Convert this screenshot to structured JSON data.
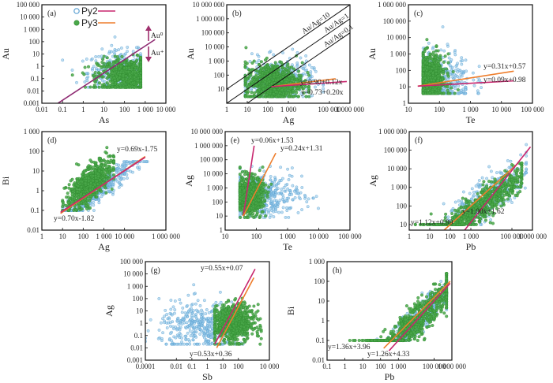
{
  "colors": {
    "py2": "#8cc4e8",
    "py2_edge": "#5a9fd1",
    "py3": "#4aa84a",
    "py3_edge": "#2f8a2f",
    "py2_fit": "#c8266e",
    "py3_fit": "#ee7d2b",
    "ratio_line": "#111111",
    "arrow": "#a0306e"
  },
  "legend": {
    "entries": [
      {
        "name": "Py2",
        "marker": "open-circle",
        "line": "py2_fit"
      },
      {
        "name": "Py3",
        "marker": "filled-circle",
        "line": "py3_fit"
      }
    ]
  },
  "chart_data": [
    {
      "id": "a",
      "panel_label": "(a)",
      "type": "scatter",
      "xlabel": "As",
      "ylabel": "Au",
      "xscale": "log",
      "yscale": "log",
      "xlim": [
        0.01,
        10000
      ],
      "ylim": [
        0.001,
        100000
      ],
      "xticks": [
        "0.01",
        "0.1",
        "1",
        "10",
        "100",
        "1 000",
        "10 000"
      ],
      "yticks": [
        "0.001",
        "0.01",
        "0.1",
        "1",
        "10",
        "100",
        "1 000",
        "10 000",
        "100 000"
      ],
      "series": [
        {
          "name": "Py2",
          "cloud": {
            "x_range": [
              0.1,
              600
            ],
            "y_range": [
              0.02,
              1500
            ],
            "center": [
              80,
              0.3
            ]
          }
        },
        {
          "name": "Py3",
          "cloud": {
            "x_range": [
              0.3,
              600
            ],
            "y_range": [
              0.02,
              200
            ],
            "center": [
              150,
              0.15
            ]
          }
        }
      ],
      "lines": [
        {
          "series": "Py2",
          "kind": "boundary",
          "x": [
            0.06,
            3000
          ],
          "y": [
            0.001,
            150
          ]
        }
      ],
      "annotations": [
        {
          "text": "Au⁰",
          "position": "upper-right",
          "arrow": "up"
        },
        {
          "text": "Au⁺",
          "position": "right",
          "arrow": "down"
        }
      ],
      "legend_position": "top-center"
    },
    {
      "id": "b",
      "panel_label": "(b)",
      "type": "scatter",
      "xlabel": "Ag",
      "ylabel": "Au",
      "xscale": "log",
      "yscale": "log",
      "xlim": [
        1,
        1000000
      ],
      "ylim": [
        1,
        10000000
      ],
      "xticks": [
        "1",
        "10",
        "100",
        "1 000",
        "100 000",
        "1 000 000"
      ],
      "yticks": [
        "10",
        "100",
        "1 000",
        "10 000",
        "100 000",
        "1 000 000",
        "10 000 000"
      ],
      "series": [
        {
          "name": "Py2",
          "cloud": {
            "x_range": [
              8,
              50000
            ],
            "y_range": [
              3,
              50000
            ],
            "center": [
              300,
              40
            ]
          }
        },
        {
          "name": "Py3",
          "cloud": {
            "x_range": [
              8,
              10000
            ],
            "y_range": [
              3,
              20000
            ],
            "center": [
              200,
              30
            ]
          }
        }
      ],
      "lines": [
        {
          "kind": "ratio",
          "label": "Au/Ag=10",
          "ratio": 10
        },
        {
          "kind": "ratio",
          "label": "Au/Ag=1",
          "ratio": 1
        },
        {
          "kind": "ratio",
          "label": "Au/Ag=0.1",
          "ratio": 0.1
        },
        {
          "series": "Py3",
          "label": "y=0.90+0.12x",
          "x": [
            150,
            200000
          ],
          "y": [
            15,
            55
          ]
        },
        {
          "series": "Py2",
          "label": "y=0.73+0.20x",
          "x": [
            150,
            700000
          ],
          "y": [
            15,
            35
          ]
        }
      ]
    },
    {
      "id": "c",
      "panel_label": "(c)",
      "type": "scatter",
      "xlabel": "Te",
      "ylabel": "Au",
      "xscale": "log",
      "yscale": "log",
      "xlim": [
        10,
        100000
      ],
      "ylim": [
        1,
        1000000
      ],
      "xticks": [
        "10",
        "100",
        "1 000",
        "10 000",
        "100 000"
      ],
      "yticks": [
        "1",
        "10",
        "100",
        "1 000",
        "10 000",
        "100 000",
        "1 000 000"
      ],
      "series": [
        {
          "name": "Py2",
          "cloud": {
            "x_range": [
              30,
              10000
            ],
            "y_range": [
              4,
              300000
            ],
            "center": [
              80,
              30
            ]
          }
        },
        {
          "name": "Py3",
          "cloud": {
            "x_range": [
              30,
              400
            ],
            "y_range": [
              4,
              40000
            ],
            "center": [
              50,
              30
            ]
          }
        }
      ],
      "lines": [
        {
          "series": "Py3",
          "label": "y=0.31x+0.57",
          "x": [
            20,
            25000
          ],
          "y": [
            11,
            90
          ]
        },
        {
          "series": "Py2",
          "label": "y=0.09x+0.98",
          "x": [
            20,
            25000
          ],
          "y": [
            11,
            23
          ]
        }
      ]
    },
    {
      "id": "d",
      "panel_label": "(d)",
      "type": "scatter",
      "xlabel": "Ag",
      "ylabel": "Bi",
      "xscale": "log",
      "yscale": "log",
      "xlim": [
        1,
        1000000
      ],
      "ylim": [
        0.01,
        1000
      ],
      "xticks": [
        "1",
        "10",
        "100",
        "1 000",
        "10 000",
        "1 000 000"
      ],
      "yticks": [
        "0.01",
        "0.1",
        "1",
        "10",
        "100",
        "1 000"
      ],
      "series": [
        {
          "name": "Py2",
          "cloud": {
            "x_range": [
              10,
              300000
            ],
            "y_range": [
              0.1,
              30
            ],
            "center": [
              500,
              1
            ]
          }
        },
        {
          "name": "Py3",
          "cloud": {
            "x_range": [
              10,
              3000
            ],
            "y_range": [
              0.1,
              250
            ],
            "center": [
              200,
              2
            ]
          }
        }
      ],
      "lines": [
        {
          "series": "Py3",
          "label": "y=0.69x-1.75",
          "x": [
            8,
            100000
          ],
          "y": [
            0.07,
            55
          ]
        },
        {
          "series": "Py2",
          "label": "y=0.70x-1.82",
          "x": [
            8,
            100000
          ],
          "y": [
            0.08,
            50
          ]
        }
      ]
    },
    {
      "id": "e",
      "panel_label": "(e)",
      "type": "scatter",
      "xlabel": "Te",
      "ylabel": "Ag",
      "xscale": "log",
      "yscale": "log",
      "xlim": [
        10,
        100000
      ],
      "ylim": [
        1,
        10000000
      ],
      "xticks": [
        "10",
        "100",
        "1 000",
        "10 000",
        "100 000"
      ],
      "yticks": [
        "1",
        "10",
        "100",
        "1 000",
        "10 000",
        "100 000",
        "1 000 000",
        "10 000 000"
      ],
      "series": [
        {
          "name": "Py2",
          "cloud": {
            "x_range": [
              30,
              30000
            ],
            "y_range": [
              8,
              200000
            ],
            "center": [
              150,
              300
            ]
          }
        },
        {
          "name": "Py3",
          "cloud": {
            "x_range": [
              30,
              300
            ],
            "y_range": [
              8,
              30000
            ],
            "center": [
              60,
              300
            ]
          }
        }
      ],
      "lines": [
        {
          "series": "Py2",
          "label": "y=0.06x+1.53",
          "x": [
            38,
            85
          ],
          "y": [
            10,
            1000000
          ]
        },
        {
          "series": "Py3",
          "label": "y=0.24x+1.31",
          "x": [
            38,
            420
          ],
          "y": [
            10,
            300000
          ]
        }
      ]
    },
    {
      "id": "f",
      "panel_label": "(f)",
      "type": "scatter",
      "xlabel": "Pb",
      "ylabel": "Ag",
      "xscale": "log",
      "yscale": "log",
      "xlim": [
        1,
        1000000
      ],
      "ylim": [
        5,
        1000000
      ],
      "xticks": [
        "1",
        "10",
        "100",
        "1 000",
        "100 000",
        "1 000 000"
      ],
      "yticks": [
        "10",
        "100",
        "1 000",
        "10 000",
        "100 000",
        "1 000 000"
      ],
      "series": [
        {
          "name": "Py2",
          "cloud": {
            "x_range": [
              10,
              500000
            ],
            "y_range": [
              10,
              200000
            ],
            "center": [
              5000,
              200
            ]
          }
        },
        {
          "name": "Py3",
          "cloud": {
            "x_range": [
              2,
              300000
            ],
            "y_range": [
              10,
              20000
            ],
            "center": [
              3000,
              100
            ]
          }
        }
      ],
      "lines": [
        {
          "series": "Py3",
          "label": "y=1.12x+0.99",
          "x": [
            50,
            200000
          ],
          "y": [
            5,
            20000
          ]
        },
        {
          "series": "Py2",
          "label": "y=1.00x+1.62",
          "x": [
            500,
            800000
          ],
          "y": [
            5,
            150000
          ]
        }
      ]
    },
    {
      "id": "g",
      "panel_label": "(g)",
      "type": "scatter",
      "xlabel": "Sb",
      "ylabel": "Ag",
      "xscale": "log",
      "yscale": "log",
      "xlim": [
        0.0001,
        10000
      ],
      "ylim": [
        0.001,
        100000
      ],
      "xticks": [
        "0.0001",
        "0.01",
        "0.1",
        "1",
        "10",
        "100",
        "10 000"
      ],
      "yticks": [
        "0.001",
        "0.01",
        "0.1",
        "1",
        "10",
        "100",
        "1 000",
        "10 000",
        "100 000"
      ],
      "series": [
        {
          "name": "Py2",
          "cloud": {
            "x_range": [
              0.0001,
              200
            ],
            "y_range": [
              0.02,
              10000
            ],
            "center": [
              0.5,
              0.5
            ]
          }
        },
        {
          "name": "Py3",
          "cloud": {
            "x_range": [
              3,
              3000
            ],
            "y_range": [
              0.02,
              200
            ],
            "center": [
              50,
              1
            ]
          }
        }
      ],
      "lines": [
        {
          "series": "Py2",
          "label": "y=0.55x+0.07",
          "x": [
            3,
            1200
          ],
          "y": [
            0.02,
            25000
          ]
        },
        {
          "series": "Py3",
          "label": "y=0.53x+0.36",
          "x": [
            4,
            1000
          ],
          "y": [
            0.01,
            5000
          ]
        }
      ]
    },
    {
      "id": "h",
      "panel_label": "(h)",
      "type": "scatter",
      "xlabel": "Pb",
      "ylabel": "Bi",
      "xscale": "log",
      "yscale": "log",
      "xlim": [
        0.1,
        1000000
      ],
      "ylim": [
        0.01,
        1000
      ],
      "xticks": [
        "0.1",
        "1",
        "10",
        "100",
        "1 000",
        "100 000",
        "1 000 000"
      ],
      "yticks": [
        "0.01",
        "0.1",
        "1",
        "10",
        "100",
        "1 000"
      ],
      "series": [
        {
          "name": "Py2",
          "cloud": {
            "x_range": [
              10,
              500000
            ],
            "y_range": [
              0.1,
              100
            ],
            "center": [
              20000,
              2
            ]
          }
        },
        {
          "name": "Py3",
          "cloud": {
            "x_range": [
              1,
              500000
            ],
            "y_range": [
              0.1,
              250
            ],
            "center": [
              10000,
              1
            ]
          }
        }
      ],
      "lines": [
        {
          "series": "Py3",
          "label": "y=1.36x+3.96",
          "x": [
            150,
            800000
          ],
          "y": [
            0.04,
            100
          ]
        },
        {
          "series": "Py2",
          "label": "y=1.26x+4.33",
          "x": [
            300,
            800000
          ],
          "y": [
            0.03,
            80
          ]
        }
      ]
    }
  ]
}
